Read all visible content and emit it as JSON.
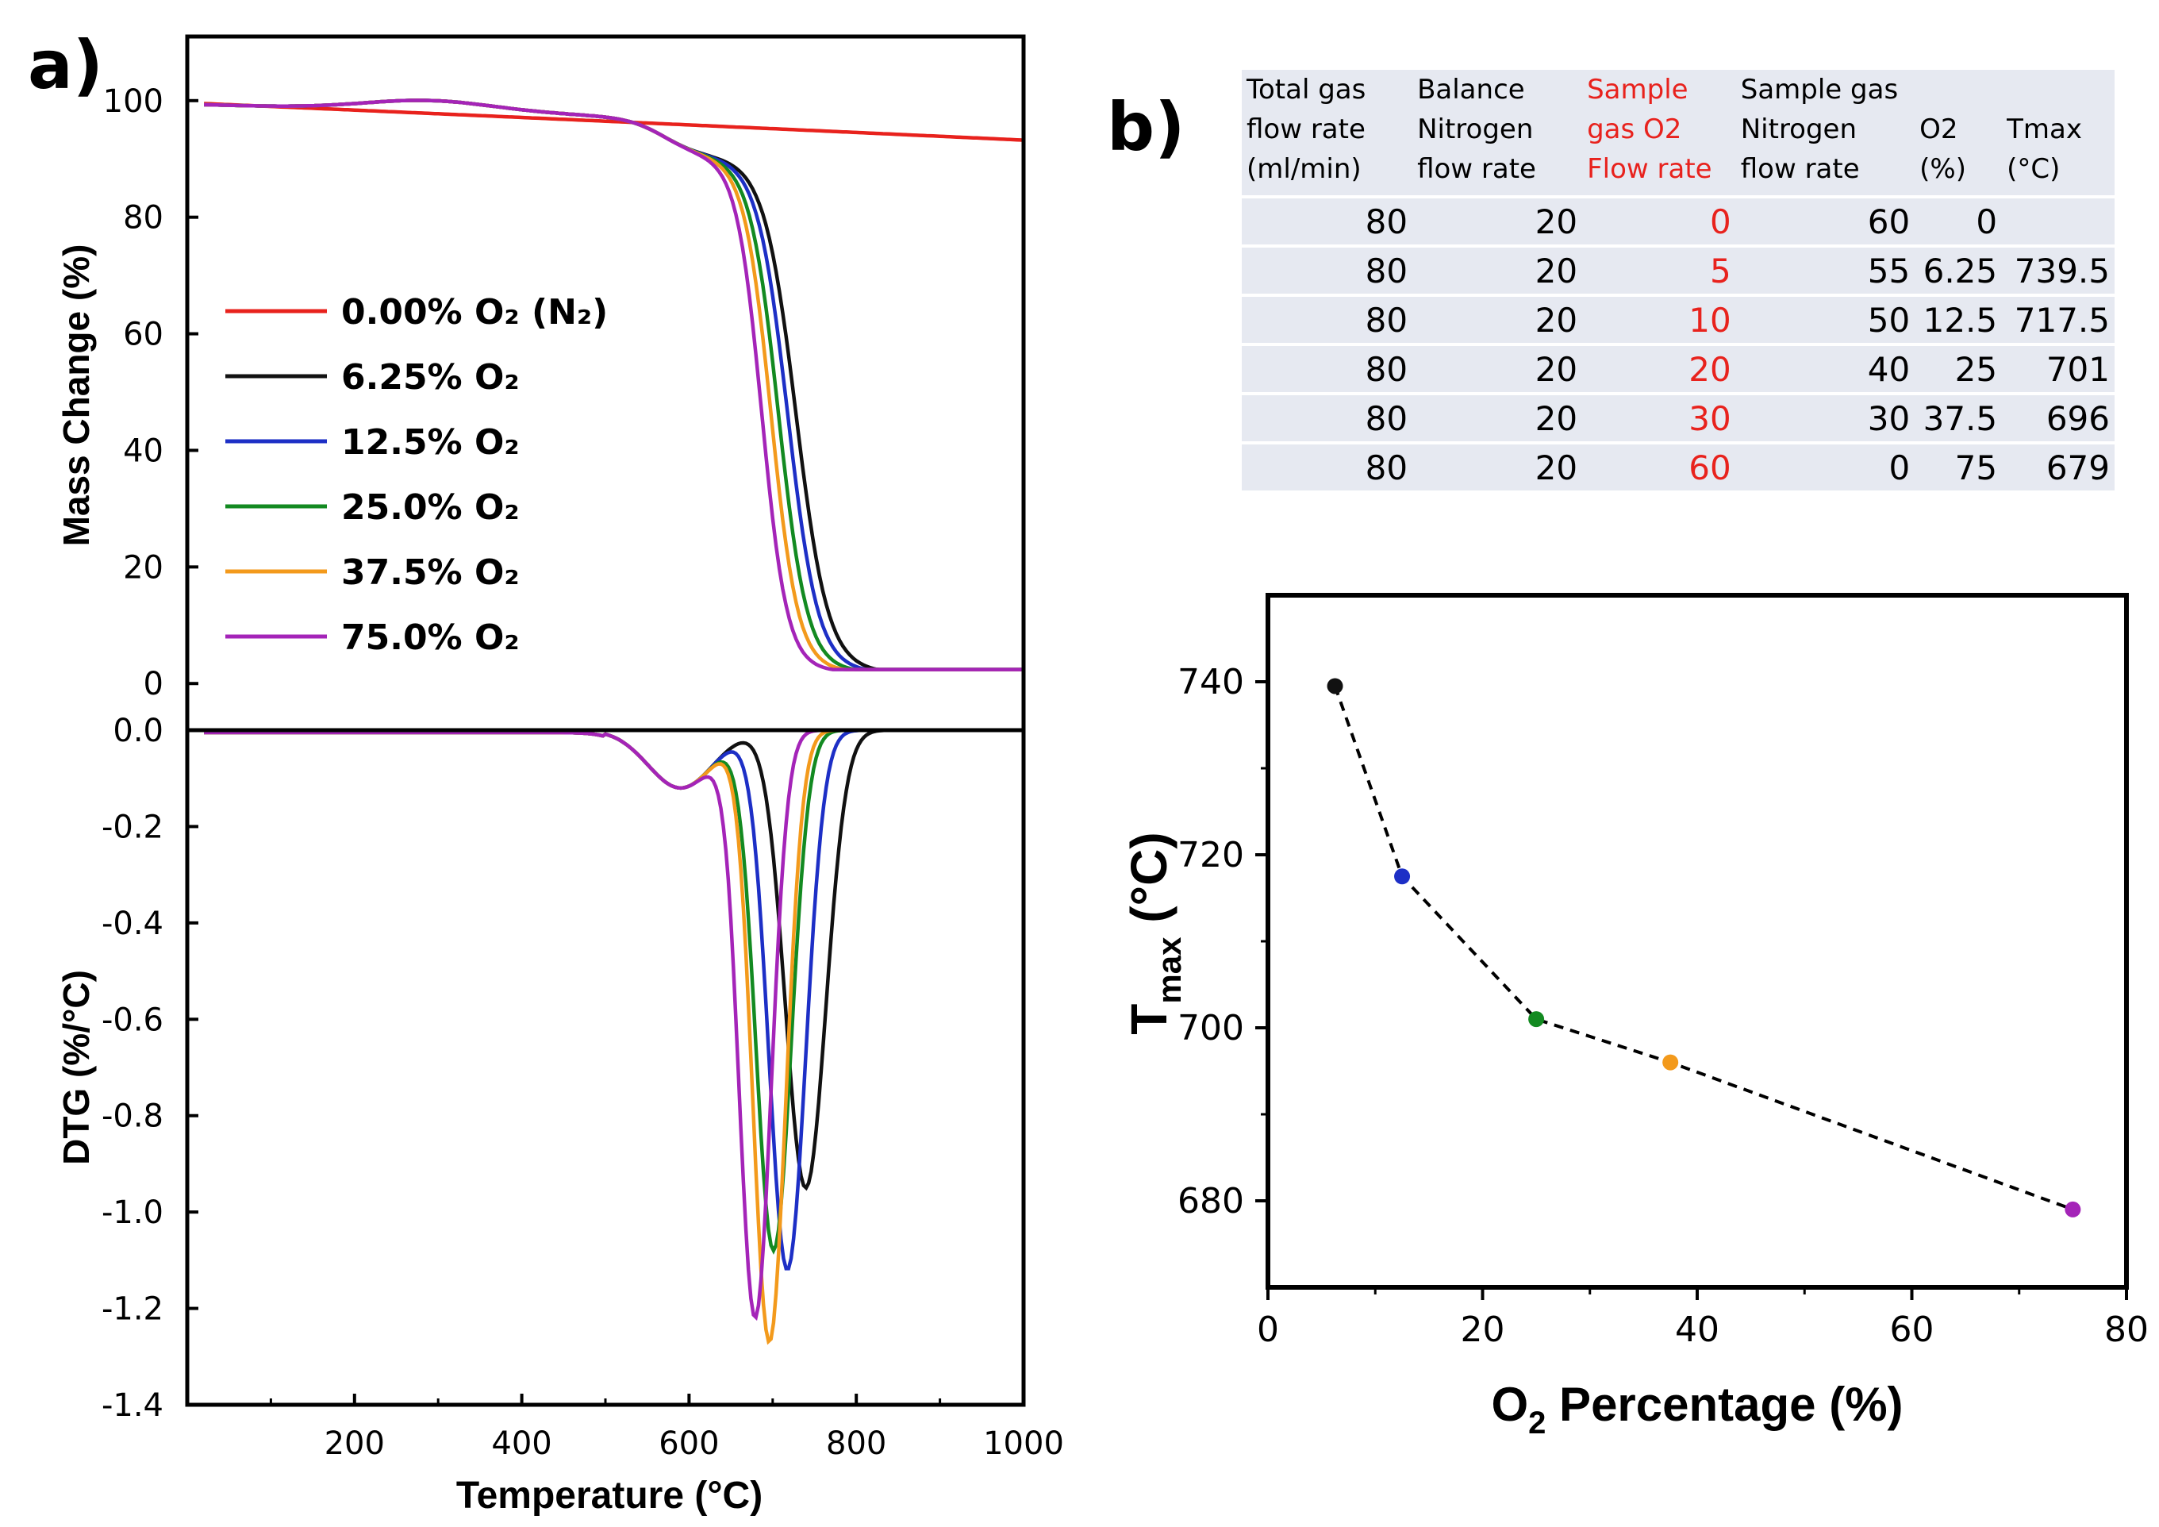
{
  "panels": {
    "a_label": "a)",
    "b_label": "b)"
  },
  "chart_data": [
    {
      "id": "mass",
      "type": "line",
      "ylabel": "Mass Change (%)",
      "ylim": [
        -8,
        111
      ],
      "xlim": [
        0,
        1000
      ],
      "yticks": [
        0,
        20,
        40,
        60,
        80,
        100
      ],
      "legend_position": "center-left",
      "series": [
        {
          "name": "0.00% O₂ (N₂)",
          "color": "#e8221d",
          "onset": null,
          "mid": null,
          "w": null
        },
        {
          "name": "6.25% O₂",
          "color": "#111111",
          "onset": 480,
          "mid": 728,
          "w": 19
        },
        {
          "name": "12.5% O₂",
          "color": "#1d2fc6",
          "onset": 480,
          "mid": 718,
          "w": 18
        },
        {
          "name": "25.0% O₂",
          "color": "#138a21",
          "onset": 470,
          "mid": 707,
          "w": 17
        },
        {
          "name": "37.5% O₂",
          "color": "#f39a1c",
          "onset": 465,
          "mid": 698,
          "w": 16
        },
        {
          "name": "75.0% O₂",
          "color": "#a424b8",
          "onset": 455,
          "mid": 687,
          "w": 15
        }
      ]
    },
    {
      "id": "dtg",
      "type": "line",
      "xlabel": "Temperature (°C)",
      "ylabel": "DTG (%/°C)",
      "xlim": [
        0,
        1000
      ],
      "ylim": [
        -1.4,
        0
      ],
      "xticks": [
        200,
        400,
        600,
        800,
        1000
      ],
      "yticks": [
        0.0,
        -0.2,
        -0.4,
        -0.6,
        -0.8,
        -1.0,
        -1.2,
        -1.4
      ],
      "series": [
        {
          "name": "6.25% O₂",
          "color": "#111111",
          "peak_x": 739.5,
          "peak_y": -0.95,
          "width": 55
        },
        {
          "name": "12.5% O₂",
          "color": "#1d2fc6",
          "peak_x": 717.5,
          "peak_y": -1.12,
          "width": 50
        },
        {
          "name": "25.0% O₂",
          "color": "#138a21",
          "peak_x": 701,
          "peak_y": -1.08,
          "width": 48
        },
        {
          "name": "37.5% O₂",
          "color": "#f39a1c",
          "peak_x": 696,
          "peak_y": -1.27,
          "width": 45
        },
        {
          "name": "75.0% O₂",
          "color": "#a424b8",
          "peak_x": 679,
          "peak_y": -1.22,
          "width": 44
        }
      ]
    },
    {
      "id": "tmax",
      "type": "scatter",
      "xlabel_main": "O",
      "xlabel_sub": "2",
      "xlabel_rest": " Percentage (%)",
      "ylabel_main": "T",
      "ylabel_sub": "max",
      "ylabel_rest": " (°C)",
      "xlim": [
        0,
        80
      ],
      "ylim": [
        670,
        750
      ],
      "xticks": [
        0,
        20,
        40,
        60,
        80
      ],
      "yticks": [
        680,
        700,
        720,
        740
      ],
      "points": [
        {
          "x": 6.25,
          "y": 739.5,
          "color": "#111111"
        },
        {
          "x": 12.5,
          "y": 717.5,
          "color": "#1d2fc6"
        },
        {
          "x": 25,
          "y": 701,
          "color": "#138a21"
        },
        {
          "x": 37.5,
          "y": 696,
          "color": "#f39a1c"
        },
        {
          "x": 75,
          "y": 679,
          "color": "#a424b8"
        }
      ]
    }
  ],
  "table": {
    "headers": [
      "Total gas flow rate (ml/min)",
      "Balance Nitrogen flow rate",
      "Sample gas O2 Flow rate",
      "Sample gas Nitrogen flow rate",
      "O2 (%)",
      "Tmax (°C)"
    ],
    "rows": [
      [
        "80",
        "20",
        "0",
        "60",
        "0",
        ""
      ],
      [
        "80",
        "20",
        "5",
        "55",
        "6.25",
        "739.5"
      ],
      [
        "80",
        "20",
        "10",
        "50",
        "12.5",
        "717.5"
      ],
      [
        "80",
        "20",
        "20",
        "40",
        "25",
        "701"
      ],
      [
        "80",
        "20",
        "30",
        "30",
        "37.5",
        "696"
      ],
      [
        "80",
        "20",
        "60",
        "0",
        "75",
        "679"
      ]
    ]
  }
}
